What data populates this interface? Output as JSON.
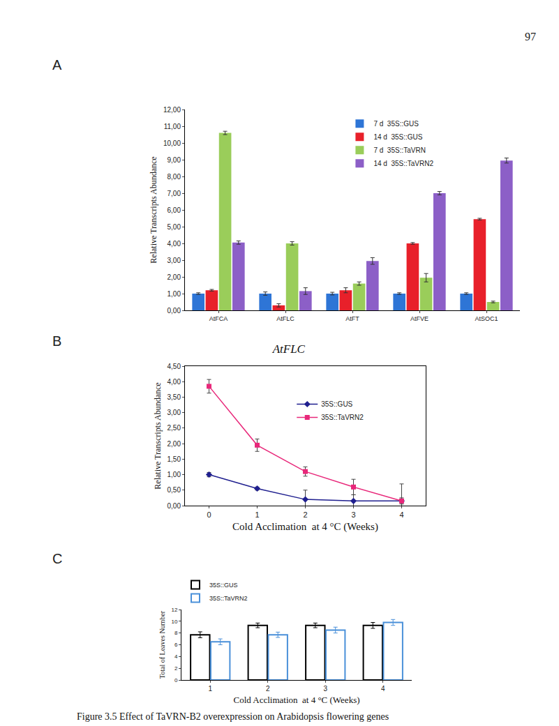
{
  "page_number": "97",
  "caption": "Figure 3.5 Effect of TaVRN-B2 overexpression on Arabidopsis flowering genes",
  "chart_data": [
    {
      "panel": "A",
      "type": "bar",
      "y_label": "Relative Transcripts Abundance",
      "categories": [
        "AtFCA",
        "AtFLC",
        "AtFT",
        "AtFVE",
        "AtSOC1"
      ],
      "series": [
        {
          "name": "7 d  35S::GUS",
          "color": "#2e75d6",
          "values": [
            1.0,
            1.0,
            1.0,
            1.0,
            1.0
          ],
          "errors": [
            0.05,
            0.1,
            0.08,
            0.05,
            0.05
          ]
        },
        {
          "name": "14 d  35S::GUS",
          "color": "#e8202a",
          "values": [
            1.2,
            0.3,
            1.2,
            4.0,
            5.45
          ],
          "errors": [
            0.05,
            0.1,
            0.15,
            0.05,
            0.05
          ]
        },
        {
          "name": "7 d  35S::TaVRN",
          "color": "#9acd5a",
          "values": [
            10.6,
            4.0,
            1.6,
            1.95,
            0.5
          ],
          "errors": [
            0.1,
            0.1,
            0.1,
            0.25,
            0.05
          ]
        },
        {
          "name": "14 d  35S::TaVRN2",
          "color": "#8c5fc7",
          "values": [
            4.05,
            1.15,
            2.95,
            7.0,
            8.95
          ],
          "errors": [
            0.1,
            0.2,
            0.2,
            0.1,
            0.15
          ]
        }
      ],
      "ylim": [
        0,
        12
      ],
      "yticks": [
        {
          "value": 0,
          "label": "0,00"
        },
        {
          "value": 1,
          "label": "1,00"
        },
        {
          "value": 2,
          "label": "2,00"
        },
        {
          "value": 3,
          "label": "3,00"
        },
        {
          "value": 4,
          "label": "4,00"
        },
        {
          "value": 5,
          "label": "5,00"
        },
        {
          "value": 6,
          "label": "6,00"
        },
        {
          "value": 7,
          "label": "7,00"
        },
        {
          "value": 8,
          "label": "8,00"
        },
        {
          "value": 9,
          "label": "9,00"
        },
        {
          "value": 10,
          "label": "10,00"
        },
        {
          "value": 11,
          "label": "11,00"
        },
        {
          "value": 12,
          "label": "12,00"
        }
      ],
      "grid": false,
      "legend": "top right"
    },
    {
      "panel": "B",
      "type": "line",
      "title": "AtFLC",
      "x_label": "Cold Acclimation  at 4 °C (Weeks)",
      "y_label": "Relative Transcripts Abundance",
      "x": [
        0,
        1,
        2,
        3,
        4
      ],
      "series": [
        {
          "name": "35S::GUS",
          "color": "#1f1f8f",
          "marker": "diamond",
          "line_style": "solid",
          "values": [
            1.0,
            0.55,
            0.2,
            0.15,
            0.15
          ],
          "errors": [
            0.07,
            0.05,
            0.3,
            0.2,
            0.55
          ]
        },
        {
          "name": "35S::TaVRN2",
          "color": "#e8287a",
          "marker": "square",
          "line_style": "solid",
          "values": [
            3.85,
            1.95,
            1.1,
            0.6,
            0.15
          ],
          "errors": [
            0.22,
            0.2,
            0.15,
            0.25,
            0.1
          ]
        }
      ],
      "xlim": [
        -0.5,
        4.5
      ],
      "xticks": [
        0,
        1,
        2,
        3,
        4
      ],
      "ylim": [
        0,
        4.5
      ],
      "yticks": [
        {
          "value": 0,
          "label": "0,00"
        },
        {
          "value": 0.5,
          "label": "0,50"
        },
        {
          "value": 1,
          "label": "1,00"
        },
        {
          "value": 1.5,
          "label": "1,50"
        },
        {
          "value": 2,
          "label": "2,00"
        },
        {
          "value": 2.5,
          "label": "2,50"
        },
        {
          "value": 3,
          "label": "3,00"
        },
        {
          "value": 3.5,
          "label": "3,50"
        },
        {
          "value": 4,
          "label": "4,00"
        },
        {
          "value": 4.5,
          "label": "4,50"
        }
      ],
      "grid": false,
      "legend": "center right"
    },
    {
      "panel": "C",
      "type": "bar",
      "x_label": "Cold Acclimation  at 4 °C (Weeks)",
      "y_label": "Total of Leaves Number",
      "categories": [
        "1",
        "2",
        "3",
        "4"
      ],
      "series": [
        {
          "name": "35S::GUS",
          "color": "#000000",
          "marker": "hollow",
          "values": [
            7.7,
            9.3,
            9.3,
            9.3
          ],
          "errors": [
            0.5,
            0.4,
            0.4,
            0.5
          ]
        },
        {
          "name": "35S::TaVRN2",
          "color": "#4a90d9",
          "marker": "hollow",
          "values": [
            6.5,
            7.7,
            8.5,
            9.8
          ],
          "errors": [
            0.5,
            0.45,
            0.5,
            0.5
          ]
        }
      ],
      "ylim": [
        0,
        12
      ],
      "yticks": [
        0,
        2,
        4,
        6,
        8,
        10,
        12
      ],
      "grid": false,
      "legend": "top left"
    }
  ]
}
